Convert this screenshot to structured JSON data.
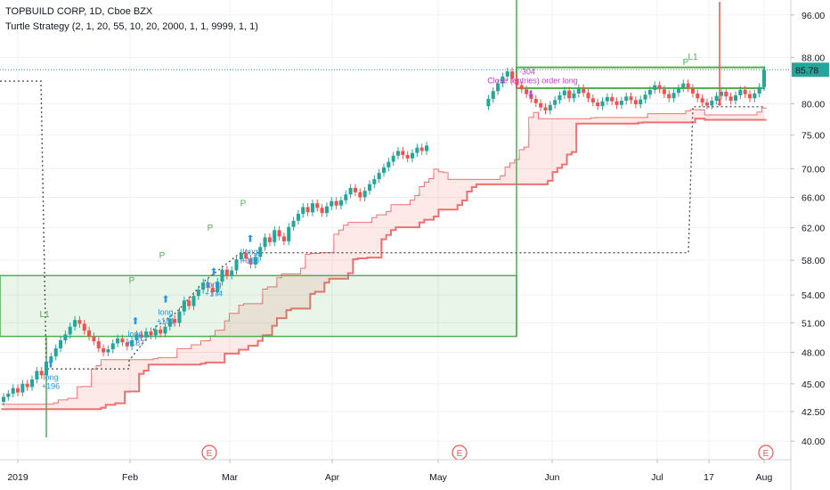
{
  "header": {
    "symbol_line": "TOPBUILD CORP, 1D, Cboe BZX",
    "strategy_line": "Turtle Strategy (2, 1, 20, 55, 10, 20, 2000, 1, 1, 9999, 1, 1)"
  },
  "colors": {
    "up": "#26a69a",
    "down": "#ef5350",
    "green_line": "#4caf50",
    "red_line": "#f07070",
    "green_fill": "rgba(76,175,80,0.13)",
    "red_fill": "rgba(239,83,80,0.13)",
    "price_label_bg": "#26a69a",
    "signal_blue": "#2196f3",
    "signal_magenta": "#c040d0",
    "earnings": "#ef5350"
  },
  "chart_data": {
    "type": "candlestick",
    "y_scale": "log",
    "ylim": [
      38.5,
      99
    ],
    "y_ticks": [
      "96.00",
      "88.00",
      "80.00",
      "75.00",
      "70.00",
      "66.00",
      "62.00",
      "58.00",
      "54.00",
      "51.00",
      "48.00",
      "45.00",
      "42.50",
      "40.00"
    ],
    "x_ticks": [
      "2019",
      "Feb",
      "Mar",
      "Apr",
      "May",
      "Jun",
      "Jul",
      "17",
      "Aug"
    ],
    "last_price": "85.78",
    "earnings_markers": [
      "E",
      "E",
      "E"
    ],
    "entries": [
      {
        "text": "long",
        "value": "+196"
      },
      {
        "text": "long",
        "value": "+187"
      },
      {
        "text": "long",
        "value": "+181"
      },
      {
        "text": "long",
        "value": "+174"
      },
      {
        "text": "long",
        "value": "+168"
      }
    ],
    "pyramid_labels": [
      "P",
      "P",
      "P",
      "P",
      "P"
    ],
    "tag_labels": [
      "L1",
      "L1"
    ],
    "close_label": "Close (entries) order long",
    "close_value": "-304",
    "closes": [
      43.8,
      44.1,
      44.6,
      44.2,
      45.0,
      44.7,
      45.4,
      46.2,
      45.8,
      47.1,
      47.6,
      48.4,
      49.2,
      49.8,
      50.6,
      51.3,
      50.9,
      50.2,
      49.6,
      49.1,
      48.4,
      48.0,
      48.3,
      48.9,
      49.4,
      49.0,
      48.6,
      49.2,
      49.8,
      49.5,
      50.1,
      49.7,
      50.3,
      49.9,
      50.6,
      51.4,
      51.0,
      52.2,
      53.4,
      52.8,
      53.9,
      54.6,
      55.4,
      54.8,
      54.3,
      55.5,
      56.9,
      56.2,
      56.8,
      58.1,
      58.9,
      58.2,
      57.5,
      58.4,
      59.6,
      60.8,
      60.2,
      61.7,
      60.9,
      60.3,
      62.1,
      62.9,
      63.8,
      64.7,
      64.0,
      65.2,
      64.6,
      63.9,
      64.8,
      65.5,
      64.9,
      65.6,
      66.4,
      67.3,
      66.7,
      66.0,
      66.9,
      67.8,
      68.5,
      69.4,
      70.2,
      71.0,
      71.9,
      72.6,
      72.0,
      71.5,
      72.3,
      73.1,
      72.6,
      73.4,
      72.8,
      72.1,
      71.2,
      70.5,
      69.8,
      70.6,
      71.3,
      72.2,
      73.0,
      73.9,
      74.6,
      79.6,
      80.8,
      82.1,
      83.4,
      84.6,
      85.5,
      84.2,
      83.1,
      82.4,
      81.6,
      80.8,
      80.1,
      79.4,
      78.9,
      79.8,
      80.6,
      81.4,
      82.2,
      80.9,
      81.7,
      82.6,
      81.8,
      80.9,
      80.2,
      79.6,
      80.4,
      81.1,
      80.4,
      79.8,
      80.5,
      81.2,
      80.6,
      79.9,
      80.7,
      81.5,
      82.3,
      83.1,
      82.4,
      81.6,
      80.9,
      81.8,
      82.6,
      83.4,
      82.6,
      81.7,
      80.9,
      80.2,
      79.7,
      80.5,
      81.3,
      82.0,
      81.2,
      80.5,
      81.4,
      82.3,
      81.6,
      80.9,
      81.7,
      82.8,
      85.78
    ]
  }
}
